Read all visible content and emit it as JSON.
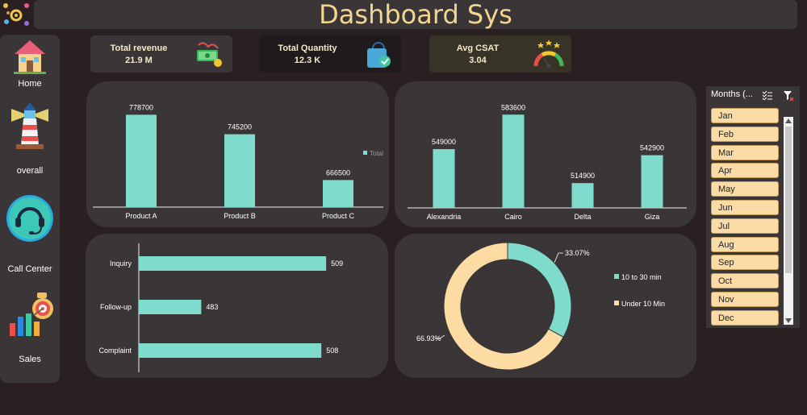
{
  "app": {
    "title": "Dashboard Sys"
  },
  "nav": {
    "items": [
      {
        "label": "Home",
        "icon": "house-icon"
      },
      {
        "label": "overall",
        "icon": "lighthouse-icon"
      },
      {
        "label": "Call Center",
        "icon": "headset-icon"
      },
      {
        "label": "Sales",
        "icon": "sales-target-icon"
      }
    ]
  },
  "kpis": [
    {
      "label": "Total revenue",
      "value": "21.9 M",
      "icon": "money-icon",
      "bg": "#3a3536"
    },
    {
      "label": "Total Quantity",
      "value": "12.3 K",
      "icon": "shopping-bag-icon",
      "bg": "#1f1b1c"
    },
    {
      "label": "Avg CSAT",
      "value": "3.04",
      "icon": "gauge-icon",
      "bg": "#373326"
    }
  ],
  "colors": {
    "bar": "#7fdccc",
    "donut_a": "#7fdccc",
    "donut_b": "#fddca4",
    "accent_title": "#f3d58f"
  },
  "slicer": {
    "title": "Months (...",
    "items": [
      "Jan",
      "Feb",
      "Mar",
      "Apr",
      "May",
      "Jun",
      "Jul",
      "Aug",
      "Sep",
      "Oct",
      "Nov",
      "Dec"
    ]
  },
  "chart_data": [
    {
      "type": "bar",
      "categories": [
        "Product A",
        "Product B",
        "Product C"
      ],
      "values": [
        778700,
        745200,
        666500
      ],
      "legend": "Total",
      "ylim": [
        620000,
        800000
      ]
    },
    {
      "type": "bar",
      "categories": [
        "Alexandria",
        "Cairo",
        "Delta",
        "Giza"
      ],
      "values": [
        549000,
        583600,
        514900,
        542900
      ],
      "ylim": [
        490000,
        600000
      ]
    },
    {
      "type": "bar",
      "orientation": "horizontal",
      "categories": [
        "Inquiry",
        "Follow-up",
        "Complaint"
      ],
      "values": [
        509,
        483,
        508
      ],
      "xlim": [
        470,
        512
      ]
    },
    {
      "type": "pie",
      "hole": true,
      "labels": [
        "10 to 30 min",
        "Under 10 Min"
      ],
      "values": [
        33.07,
        66.93
      ],
      "value_labels": [
        "33.07%",
        "66.93%"
      ]
    }
  ]
}
